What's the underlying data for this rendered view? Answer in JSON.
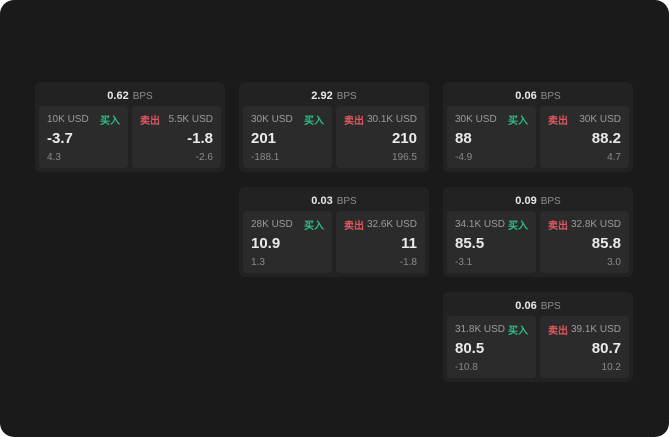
{
  "labels": {
    "bps": "BPS",
    "buy": "买入",
    "sell": "卖出"
  },
  "colors": {
    "background": "#1a1a1a",
    "card": "#222222",
    "panel": "#2b2b2b",
    "buy_green": "#2ebd85",
    "sell_red": "#e0565e"
  },
  "cards": [
    {
      "bps": "0.62",
      "buy": {
        "amount": "10K USD",
        "value": "-3.7",
        "sub": "4.3"
      },
      "sell": {
        "amount": "5.5K USD",
        "value": "-1.8",
        "sub": "-2.6"
      }
    },
    {
      "bps": "2.92",
      "buy": {
        "amount": "30K USD",
        "value": "201",
        "sub": "-188.1"
      },
      "sell": {
        "amount": "30.1K USD",
        "value": "210",
        "sub": "196.5"
      }
    },
    {
      "bps": "0.06",
      "buy": {
        "amount": "30K USD",
        "value": "88",
        "sub": "-4.9"
      },
      "sell": {
        "amount": "30K USD",
        "value": "88.2",
        "sub": "4.7"
      }
    },
    {
      "bps": "0.03",
      "buy": {
        "amount": "28K USD",
        "value": "10.9",
        "sub": "1.3"
      },
      "sell": {
        "amount": "32.6K USD",
        "value": "11",
        "sub": "-1.8"
      }
    },
    {
      "bps": "0.09",
      "buy": {
        "amount": "34.1K USD",
        "value": "85.5",
        "sub": "-3.1"
      },
      "sell": {
        "amount": "32.8K USD",
        "value": "85.8",
        "sub": "3.0"
      }
    },
    {
      "bps": "0.06",
      "buy": {
        "amount": "31.8K USD",
        "value": "80.5",
        "sub": "-10.8"
      },
      "sell": {
        "amount": "39.1K USD",
        "value": "80.7",
        "sub": "10.2"
      }
    }
  ]
}
